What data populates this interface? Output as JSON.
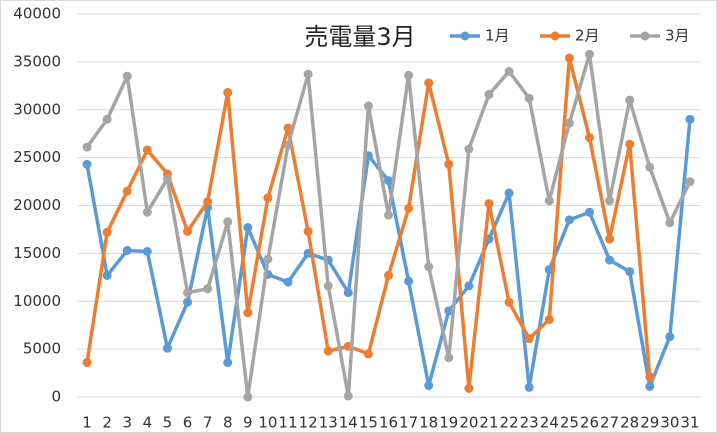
{
  "chart_data": {
    "type": "line",
    "title": "売電量3月",
    "categories": [
      "1",
      "2",
      "3",
      "4",
      "5",
      "6",
      "7",
      "8",
      "9",
      "10",
      "11",
      "12",
      "13",
      "14",
      "15",
      "16",
      "17",
      "18",
      "19",
      "20",
      "21",
      "22",
      "23",
      "24",
      "25",
      "26",
      "27",
      "28",
      "29",
      "30",
      "31"
    ],
    "series": [
      {
        "name": "1月",
        "color": "#5b9bd5",
        "values": [
          24300,
          12700,
          15300,
          15200,
          5100,
          9900,
          19800,
          3600,
          17700,
          12800,
          12000,
          15000,
          14300,
          10900,
          25200,
          22600,
          12100,
          1200,
          9000,
          11600,
          16500,
          21300,
          1000,
          13300,
          18500,
          19300,
          14300,
          13100,
          1100,
          6300,
          29000
        ]
      },
      {
        "name": "2月",
        "color": "#ed7d31",
        "values": [
          3600,
          17200,
          21500,
          25800,
          23300,
          17300,
          20400,
          31800,
          8800,
          20800,
          28100,
          17300,
          4800,
          5300,
          4500,
          12700,
          19700,
          32800,
          24300,
          900,
          20200,
          9900,
          6100,
          8100,
          35400,
          27100,
          16500,
          26400,
          2100,
          null,
          null
        ]
      },
      {
        "name": "3月",
        "color": "#a5a5a5",
        "values": [
          26100,
          29000,
          33500,
          19300,
          22800,
          10900,
          11300,
          18300,
          0,
          14400,
          26300,
          33700,
          11600,
          100,
          30400,
          19000,
          33600,
          13600,
          4100,
          25900,
          31600,
          34000,
          31200,
          20500,
          28600,
          35800,
          20500,
          31000,
          24000,
          18200,
          22500
        ]
      }
    ],
    "ylim": [
      0,
      40000
    ],
    "yticks": [
      0,
      5000,
      10000,
      15000,
      20000,
      25000,
      30000,
      35000,
      40000
    ],
    "grid": true,
    "legend": "top-right"
  }
}
